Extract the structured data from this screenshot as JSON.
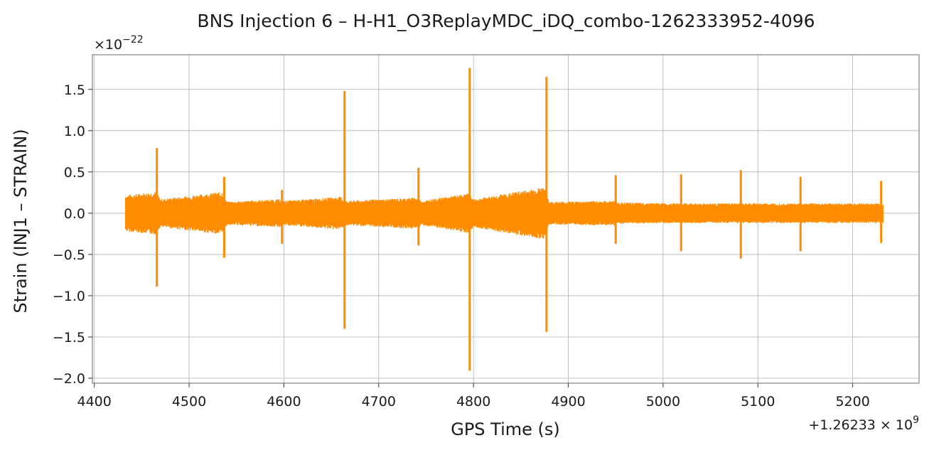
{
  "chart_data": {
    "type": "line",
    "title": "BNS Injection 6 – H-H1_O3ReplayMDC_iDQ_combo-1262333952-4096",
    "xlabel": "GPS Time (s)",
    "ylabel": "Strain (INJ1 – STRAIN)",
    "x_offset_label": "+1.26233 × 10",
    "x_offset_exponent": "9",
    "y_scale_label": "×10",
    "y_scale_exponent": "−22",
    "xlim": [
      4398,
      5270
    ],
    "ylim": [
      -2.06,
      1.92
    ],
    "x_ticks": [
      4400,
      4500,
      4600,
      4700,
      4800,
      4900,
      5000,
      5100,
      5200
    ],
    "x_tick_labels": [
      "4400",
      "4500",
      "4600",
      "4700",
      "4800",
      "4900",
      "5000",
      "5100",
      "5200"
    ],
    "y_ticks": [
      1.5,
      1.0,
      0.5,
      0.0,
      -0.5,
      -1.0,
      -1.5,
      -2.0
    ],
    "y_tick_labels": [
      "1.5",
      "1.0",
      "0.5",
      "0.0",
      "−0.5",
      "−1.0",
      "−1.5",
      "−2.0"
    ],
    "grid": true,
    "color": "#ff8c00",
    "x_range": [
      4433,
      5232
    ],
    "noise_envelope": [
      [
        4433,
        0.22
      ],
      [
        4465,
        0.26
      ],
      [
        4470,
        0.17
      ],
      [
        4535,
        0.26
      ],
      [
        4540,
        0.14
      ],
      [
        4597,
        0.17
      ],
      [
        4600,
        0.15
      ],
      [
        4660,
        0.2
      ],
      [
        4665,
        0.15
      ],
      [
        4740,
        0.19
      ],
      [
        4745,
        0.15
      ],
      [
        4795,
        0.24
      ],
      [
        4800,
        0.17
      ],
      [
        4875,
        0.32
      ],
      [
        4880,
        0.14
      ],
      [
        4948,
        0.15
      ],
      [
        4952,
        0.13
      ],
      [
        5018,
        0.12
      ],
      [
        5082,
        0.12
      ],
      [
        5144,
        0.12
      ],
      [
        5232,
        0.12
      ]
    ],
    "spikes": [
      {
        "x": 4466,
        "max": 0.78,
        "min": -0.88
      },
      {
        "x": 4537,
        "max": 0.43,
        "min": -0.53
      },
      {
        "x": 4598,
        "max": 0.27,
        "min": -0.36
      },
      {
        "x": 4664,
        "max": 1.47,
        "min": -1.39
      },
      {
        "x": 4742,
        "max": 0.54,
        "min": -0.38
      },
      {
        "x": 4796,
        "max": 1.75,
        "min": -1.9
      },
      {
        "x": 4877,
        "max": 1.64,
        "min": -1.43
      },
      {
        "x": 4950,
        "max": 0.45,
        "min": -0.36
      },
      {
        "x": 5019,
        "max": 0.46,
        "min": -0.45
      },
      {
        "x": 5082,
        "max": 0.51,
        "min": -0.54
      },
      {
        "x": 5145,
        "max": 0.43,
        "min": -0.45
      },
      {
        "x": 5230,
        "max": 0.38,
        "min": -0.35
      }
    ]
  }
}
